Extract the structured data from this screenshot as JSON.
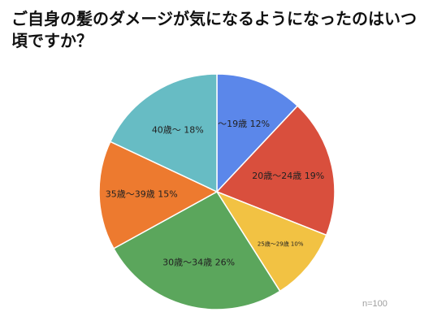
{
  "title": "ご自身の髪のダメージが気になるようになったのはいつ頃ですか？",
  "sample_note": "n=100",
  "chart_data": {
    "type": "pie",
    "title": "ご自身の髪のダメージが気になるようになったのはいつ頃ですか？",
    "start_angle": "12 o'clock",
    "direction": "clockwise",
    "legend": "none",
    "slices": [
      {
        "label": "〜19歳",
        "value": 12,
        "value_text": "12%",
        "color": "#5b87ea"
      },
      {
        "label": "20歳〜24歳",
        "value": 19,
        "value_text": "19%",
        "color": "#d94f3d"
      },
      {
        "label": "25歳〜29歳",
        "value": 10,
        "value_text": "10%",
        "color": "#f2c243"
      },
      {
        "label": "30歳〜34歳",
        "value": 26,
        "value_text": "26%",
        "color": "#5ba65c"
      },
      {
        "label": "35歳〜39歳",
        "value": 15,
        "value_text": "15%",
        "color": "#ed7a2f"
      },
      {
        "label": "40歳〜",
        "value": 18,
        "value_text": "18%",
        "color": "#67bcc4"
      }
    ],
    "annotations": [
      "n=100"
    ]
  }
}
